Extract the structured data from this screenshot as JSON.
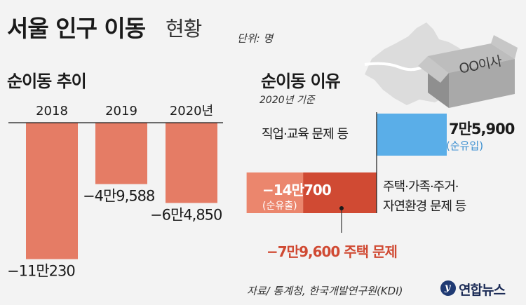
{
  "header": {
    "title": "서울 인구 이동",
    "subtitle": "현황",
    "unit": "단위: 명"
  },
  "left_section": {
    "title": "순이동 추이"
  },
  "right_section": {
    "title": "순이동 이유",
    "basis": "2020년 기준",
    "box_label": "OO이사",
    "inflow_reason": "직업·교육 문제 등",
    "outflow_reason_line1": "주택·가족·주거·",
    "outflow_reason_line2": "자연환경 문제 등",
    "inflow_value": "7만5,900",
    "inflow_tag": "(순유입)",
    "outflow_value": "−14만700",
    "outflow_tag": "(순유출)",
    "housing_value": "−7만9,600 주택 문제"
  },
  "footer": {
    "source": "자료/ 통계청, 한국개발연구원(KDI)",
    "logo": "연합뉴스"
  },
  "colors": {
    "bar": "#e57c65",
    "dark_red": "#d04a33",
    "light_red": "#eb866d",
    "blue": "#5aaee8",
    "background": "#f3f3f3"
  },
  "chart_data": [
    {
      "type": "bar",
      "title": "순이동 추이",
      "categories": [
        "2018",
        "2019",
        "2020년"
      ],
      "values": [
        -110230,
        -49588,
        -64850
      ],
      "value_labels": [
        "−11만230",
        "−4만9,588",
        "−6만4,850"
      ],
      "ylim": [
        -115000,
        0
      ]
    },
    {
      "type": "bar",
      "title": "순이동 이유",
      "categories": [
        "직업·교육 문제 등",
        "주택·가족·주거·자연환경 문제 등"
      ],
      "values": [
        75900,
        -140700
      ],
      "sub_values": [
        {
          "category": "주택·가족·주거·자연환경 문제 등",
          "label": "주택 문제",
          "value": -79600
        }
      ]
    }
  ]
}
